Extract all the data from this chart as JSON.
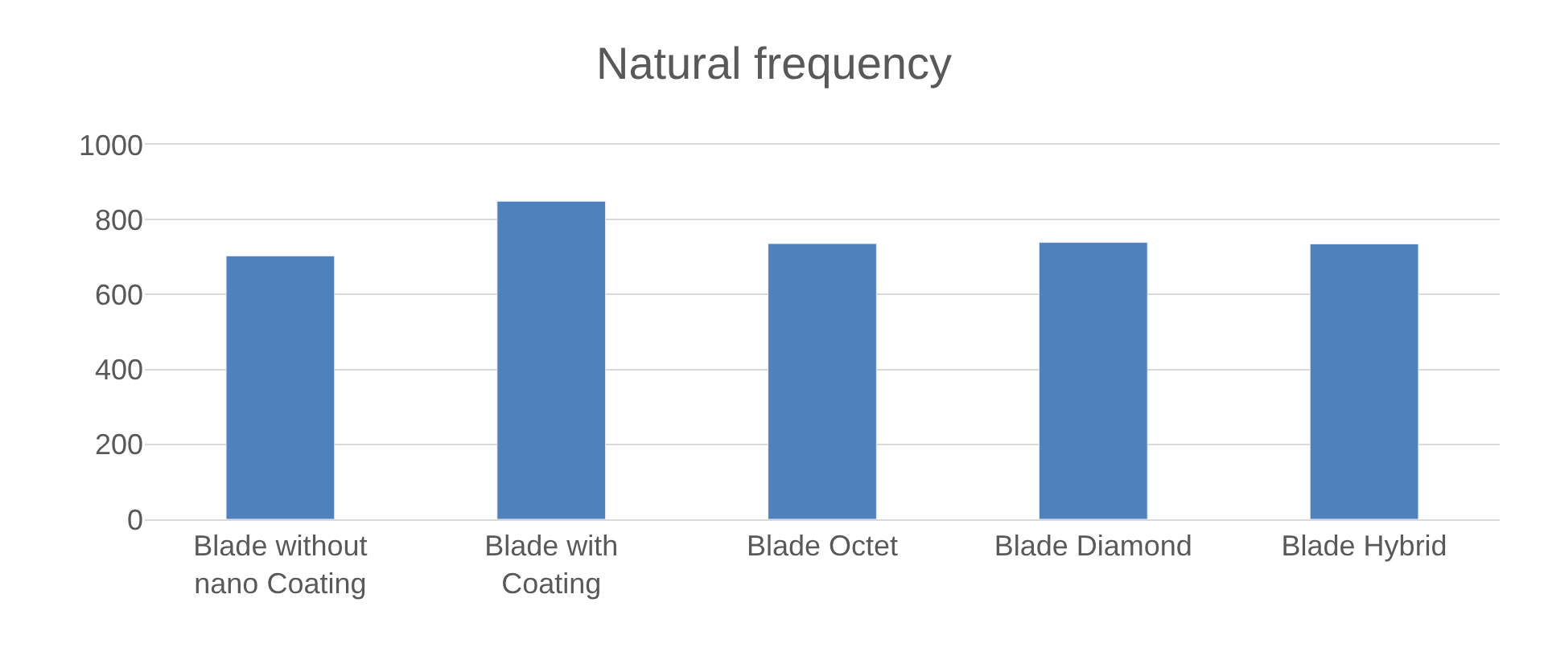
{
  "chart_data": {
    "type": "bar",
    "title": "Natural frequency",
    "categories": [
      "Blade without\nnano Coating",
      "Blade with\nCoating",
      "Blade Octet",
      "Blade Diamond",
      "Blade Hybrid"
    ],
    "values": [
      703,
      849,
      736,
      739,
      735
    ],
    "color": "#4f81bd",
    "ylim": [
      0,
      1000
    ],
    "yticks": [
      0,
      200,
      400,
      600,
      800,
      1000
    ],
    "grid": "y"
  }
}
